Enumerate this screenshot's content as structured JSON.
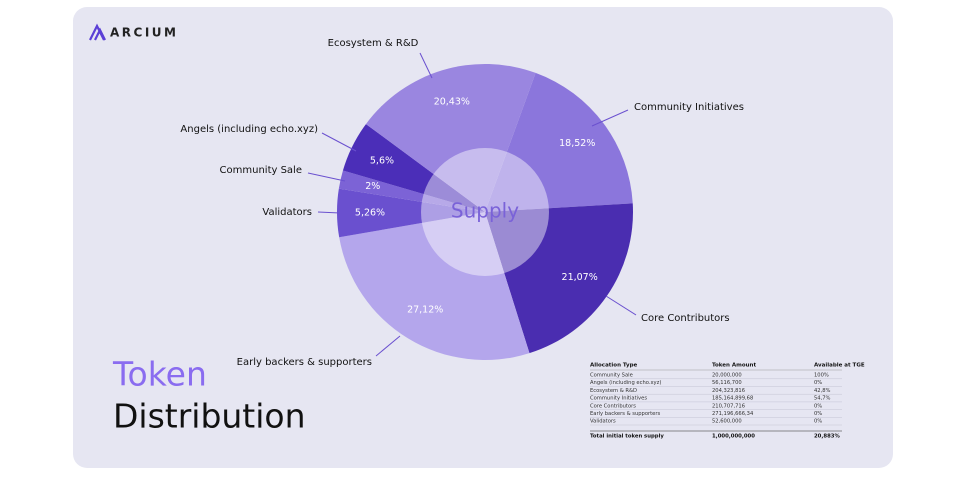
{
  "logo": "ARCIUM",
  "chart_data": {
    "type": "pie",
    "title": [
      "Token",
      "Distribution"
    ],
    "center_label": "Supply",
    "categories": [
      "Community Initiatives",
      "Core Contributors",
      "Early backers & supporters",
      "Validators",
      "Community Sale",
      "Angels (including echo.xyz)",
      "Ecosystem & R&D"
    ],
    "values": [
      18.52,
      21.07,
      27.12,
      5.26,
      2,
      5.6,
      20.43
    ],
    "value_labels": [
      "18,52%",
      "21,07%",
      "27,12%",
      "5,26%",
      "2%",
      "5,6%",
      "20,43%"
    ],
    "colors": [
      "#8b76dc",
      "#4a2db0",
      "#b4a6ec",
      "#6a50cf",
      "#7c63d6",
      "#4b2eb8",
      "#9a86e0"
    ]
  },
  "table": {
    "header": [
      "Allocation Type",
      "Token Amount",
      "Available at TGE"
    ],
    "rows": [
      [
        "Community Sale",
        "20,000,000",
        "100%"
      ],
      [
        "Angels (including echo.xyz)",
        "56,116,700",
        "0%"
      ],
      [
        "Ecosystem & R&D",
        "204,323,816",
        "42,8%"
      ],
      [
        "Community Initiatives",
        "185,164,899,68",
        "54,7%"
      ],
      [
        "Core Contributors",
        "210,707,716",
        "0%"
      ],
      [
        "Early backers & supporters",
        "271,196,666,34",
        "0%"
      ],
      [
        "Validators",
        "52,600,000",
        "0%"
      ]
    ],
    "total": [
      "Total initial token supply",
      "1,000,000,000",
      "20,883%"
    ]
  }
}
